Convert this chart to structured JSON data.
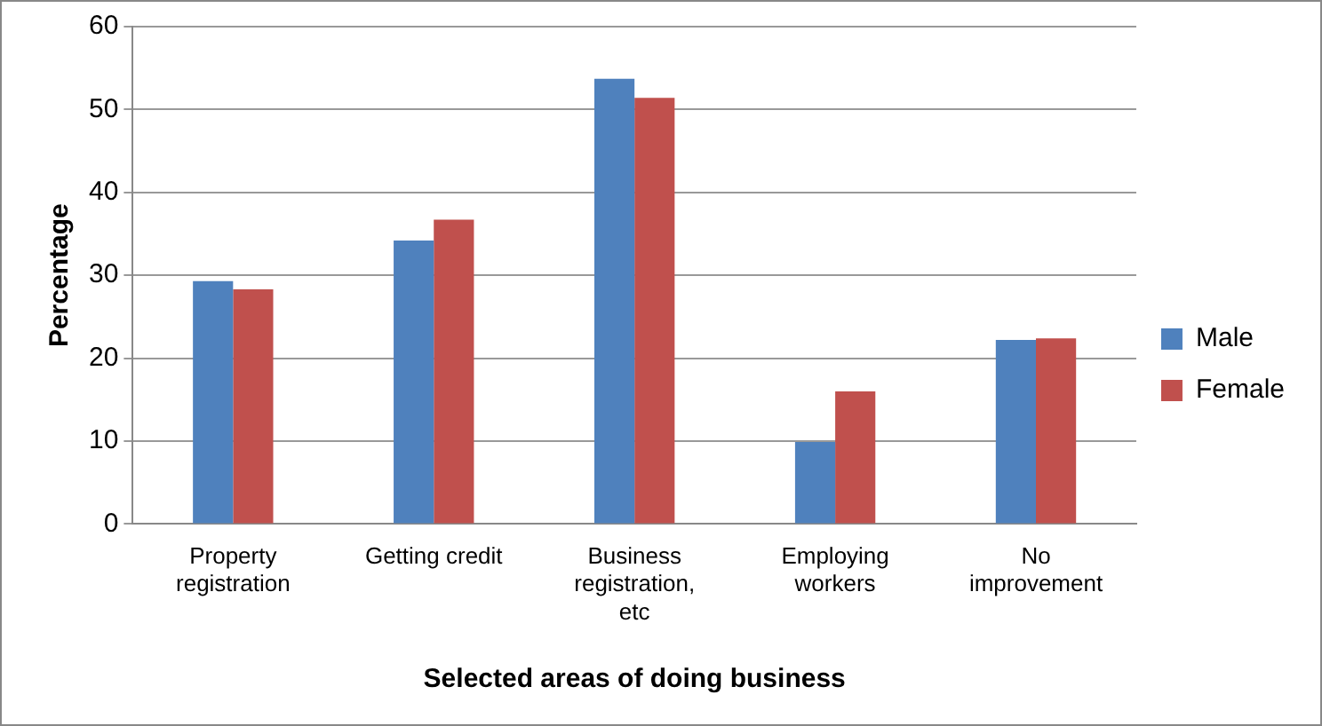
{
  "chart_data": {
    "type": "bar",
    "xlabel": "Selected areas of doing business",
    "ylabel": "Percentage",
    "categories": [
      "Property registration",
      "Getting credit",
      "Business registration, etc",
      "Employing workers",
      "No improvement"
    ],
    "series": [
      {
        "name": "Male",
        "color": "#4f81bd",
        "values": [
          29.3,
          34.2,
          53.7,
          9.9,
          22.2
        ]
      },
      {
        "name": "Female",
        "color": "#c0504d",
        "values": [
          28.3,
          36.7,
          51.4,
          16.0,
          22.4
        ]
      }
    ],
    "ylim": [
      0,
      60
    ],
    "yticks": [
      0,
      10,
      20,
      30,
      40,
      50,
      60
    ],
    "grid": "y",
    "legend": "right"
  }
}
